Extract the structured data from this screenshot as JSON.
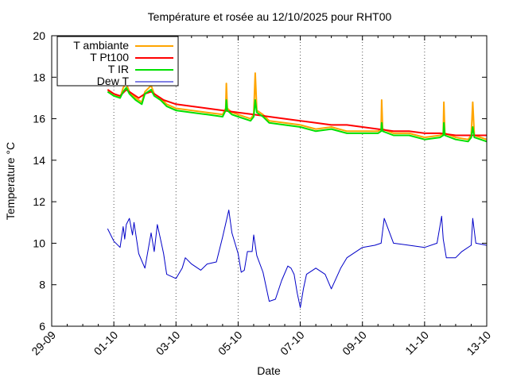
{
  "chart_data": {
    "type": "line",
    "title": "Température et rosée au 12/10/2025 pour RHT00",
    "xlabel": "Date",
    "ylabel": "Temperature °C",
    "x_ticks": [
      "29-09",
      "01-10",
      "03-10",
      "05-10",
      "07-10",
      "09-10",
      "11-10",
      "13-10"
    ],
    "x_tick_days": [
      0,
      2,
      4,
      6,
      8,
      10,
      12,
      14
    ],
    "xlim": [
      0,
      14
    ],
    "ylim": [
      6,
      20
    ],
    "y_ticks": [
      6,
      8,
      10,
      12,
      14,
      16,
      18,
      20
    ],
    "grid": "vertical dotted at x ticks",
    "legend_position": "top-left",
    "series": [
      {
        "name": "T ambiante",
        "color": "#ffa500",
        "x": [
          1.8,
          2.0,
          2.2,
          2.3,
          2.4,
          2.5,
          2.7,
          2.9,
          3.0,
          3.2,
          3.3,
          3.5,
          3.7,
          4.0,
          4.5,
          5.0,
          5.5,
          5.6,
          5.62,
          5.65,
          5.8,
          6.0,
          6.4,
          6.5,
          6.55,
          6.6,
          6.8,
          7.0,
          7.5,
          8.0,
          8.5,
          9.0,
          9.5,
          10.0,
          10.5,
          10.6,
          10.62,
          10.65,
          11.0,
          11.5,
          12.0,
          12.5,
          12.6,
          12.62,
          12.65,
          13.0,
          13.4,
          13.5,
          13.55,
          13.6,
          14.0
        ],
        "y": [
          17.4,
          17.2,
          17.0,
          17.5,
          17.7,
          17.3,
          17.0,
          16.8,
          17.3,
          17.6,
          17.2,
          17.0,
          16.7,
          16.5,
          16.4,
          16.3,
          16.2,
          16.5,
          17.7,
          16.5,
          16.3,
          16.2,
          16.0,
          16.2,
          18.2,
          16.4,
          16.2,
          15.9,
          15.8,
          15.7,
          15.5,
          15.6,
          15.4,
          15.4,
          15.4,
          15.5,
          16.9,
          15.5,
          15.3,
          15.3,
          15.1,
          15.2,
          15.3,
          16.8,
          15.3,
          15.1,
          15.0,
          15.2,
          16.8,
          15.2,
          15.0
        ]
      },
      {
        "name": "T Pt100",
        "color": "#ff0000",
        "x": [
          1.8,
          2.0,
          2.2,
          2.4,
          2.6,
          2.8,
          3.0,
          3.2,
          3.4,
          3.6,
          4.0,
          4.5,
          5.0,
          5.5,
          6.0,
          6.5,
          7.0,
          7.5,
          8.0,
          8.5,
          9.0,
          9.5,
          10.0,
          10.5,
          11.0,
          11.5,
          12.0,
          12.5,
          13.0,
          13.5,
          14.0
        ],
        "y": [
          17.4,
          17.2,
          17.1,
          17.4,
          17.2,
          17.0,
          17.2,
          17.3,
          17.1,
          16.9,
          16.7,
          16.6,
          16.5,
          16.4,
          16.3,
          16.2,
          16.1,
          16.0,
          15.9,
          15.8,
          15.7,
          15.7,
          15.6,
          15.5,
          15.4,
          15.4,
          15.3,
          15.3,
          15.2,
          15.2,
          15.2
        ]
      },
      {
        "name": "T IR",
        "color": "#00e000",
        "x": [
          1.8,
          2.0,
          2.2,
          2.3,
          2.4,
          2.5,
          2.7,
          2.9,
          3.0,
          3.2,
          3.3,
          3.5,
          3.7,
          4.0,
          4.5,
          5.0,
          5.5,
          5.6,
          5.62,
          5.65,
          5.8,
          6.0,
          6.4,
          6.5,
          6.55,
          6.6,
          6.8,
          7.0,
          7.5,
          8.0,
          8.5,
          9.0,
          9.5,
          10.0,
          10.5,
          10.6,
          10.62,
          10.65,
          11.0,
          11.5,
          12.0,
          12.5,
          12.6,
          12.62,
          12.65,
          13.0,
          13.4,
          13.5,
          13.55,
          13.6,
          14.0
        ],
        "y": [
          17.3,
          17.1,
          17.0,
          17.3,
          17.5,
          17.2,
          16.9,
          16.7,
          17.2,
          17.4,
          17.1,
          16.9,
          16.6,
          16.4,
          16.3,
          16.2,
          16.1,
          16.4,
          16.9,
          16.4,
          16.2,
          16.1,
          15.9,
          16.1,
          16.9,
          16.3,
          16.1,
          15.8,
          15.7,
          15.6,
          15.4,
          15.5,
          15.3,
          15.3,
          15.3,
          15.4,
          15.8,
          15.4,
          15.2,
          15.2,
          15.0,
          15.1,
          15.2,
          15.8,
          15.2,
          15.0,
          14.9,
          15.1,
          15.6,
          15.1,
          14.9
        ]
      },
      {
        "name": "Dew T",
        "color": "#0000c8",
        "x": [
          1.8,
          2.0,
          2.2,
          2.3,
          2.35,
          2.4,
          2.5,
          2.6,
          2.65,
          2.7,
          2.8,
          3.0,
          3.2,
          3.3,
          3.4,
          3.5,
          3.6,
          3.7,
          4.0,
          4.2,
          4.3,
          4.5,
          4.8,
          5.0,
          5.3,
          5.5,
          5.7,
          5.8,
          6.0,
          6.1,
          6.2,
          6.3,
          6.45,
          6.5,
          6.6,
          6.8,
          7.0,
          7.2,
          7.4,
          7.6,
          7.7,
          7.8,
          7.9,
          8.0,
          8.1,
          8.2,
          8.4,
          8.5,
          8.8,
          9.0,
          9.3,
          9.5,
          10.0,
          10.4,
          10.6,
          10.7,
          11.0,
          11.5,
          12.0,
          12.4,
          12.55,
          12.6,
          12.7,
          13.0,
          13.2,
          13.5,
          13.55,
          13.65,
          14.0
        ],
        "y": [
          10.7,
          10.1,
          9.8,
          10.8,
          10.2,
          10.9,
          11.2,
          10.4,
          11.0,
          10.5,
          9.5,
          8.8,
          10.5,
          9.6,
          10.9,
          10.2,
          9.5,
          8.5,
          8.3,
          8.8,
          9.3,
          9.0,
          8.7,
          9.0,
          9.1,
          10.3,
          11.6,
          10.5,
          9.5,
          8.6,
          8.7,
          9.6,
          9.6,
          10.4,
          9.4,
          8.6,
          7.2,
          7.3,
          8.2,
          8.9,
          8.8,
          8.5,
          7.6,
          6.9,
          7.8,
          8.5,
          8.7,
          8.8,
          8.5,
          7.8,
          8.8,
          9.3,
          9.8,
          9.9,
          10.0,
          11.2,
          10.0,
          9.9,
          9.8,
          10.0,
          11.3,
          10.2,
          9.3,
          9.3,
          9.6,
          9.9,
          11.2,
          10.0,
          9.9
        ]
      }
    ]
  }
}
